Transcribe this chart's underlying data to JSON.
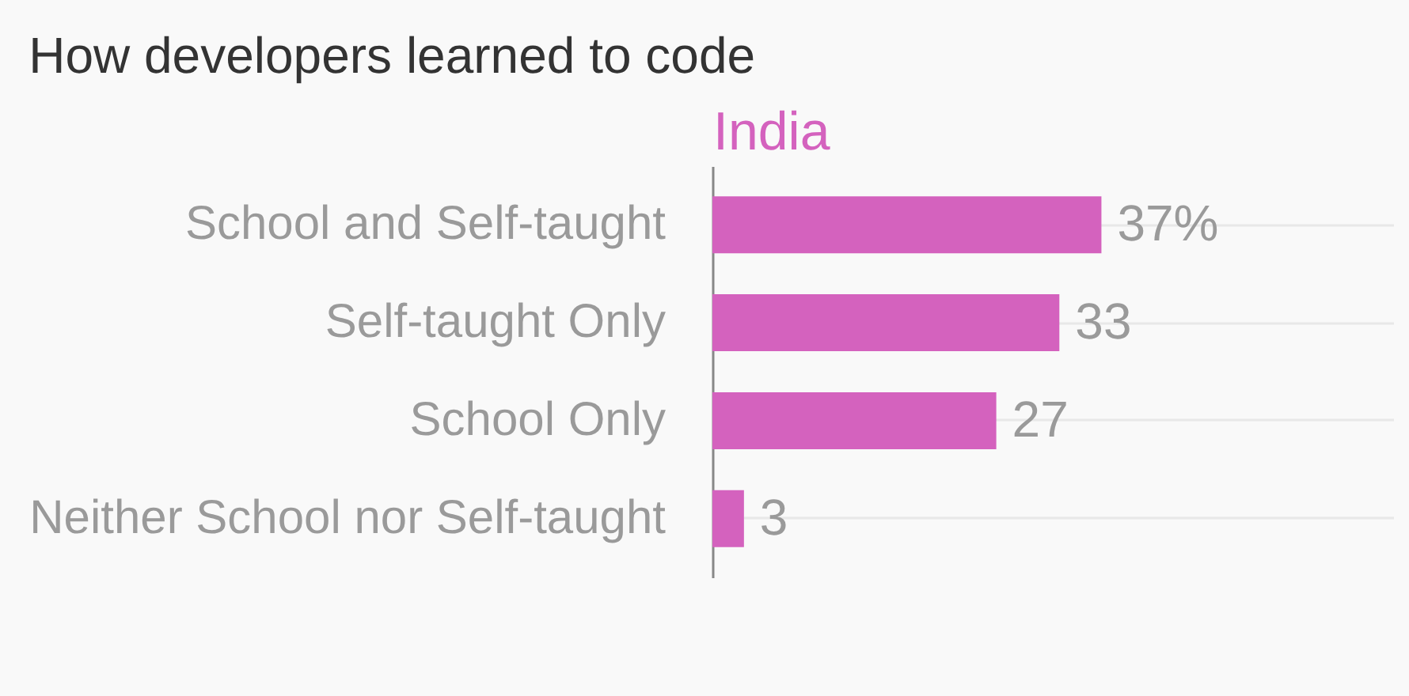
{
  "chart_data": {
    "type": "bar",
    "orientation": "horizontal",
    "title": "How developers learned to code",
    "categories": [
      "School and Self-taught",
      "Self-taught Only",
      "School Only",
      "Neither School nor Self-taught"
    ],
    "series": [
      {
        "name": "India",
        "color": "#d462be",
        "values": [
          37,
          33,
          27,
          3
        ],
        "value_labels": [
          "37%",
          "33",
          "27",
          "3"
        ]
      }
    ],
    "grid": "y"
  }
}
